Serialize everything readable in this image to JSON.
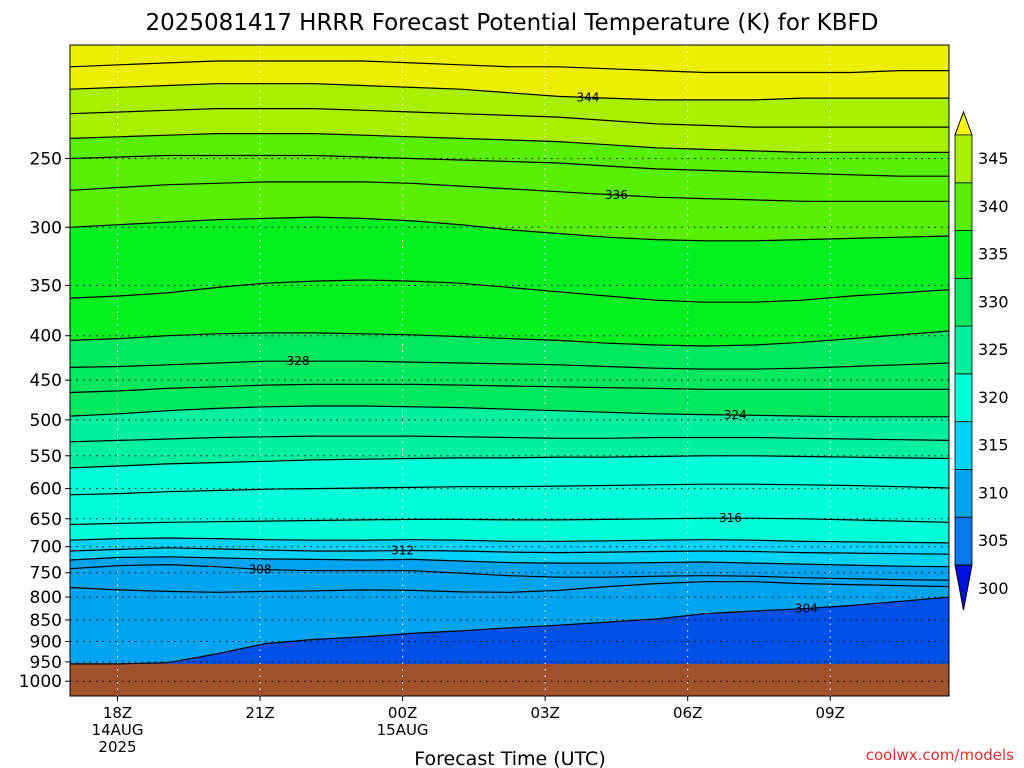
{
  "chart_data": {
    "type": "area",
    "title": "2025081417 HRRR Forecast Potential Temperature (K) for KBFD",
    "xlabel": "Forecast Time (UTC)",
    "ylabel": "",
    "credit": "coolwx.com/models",
    "x_hours": [
      0,
      3,
      6,
      9,
      12,
      15,
      18
    ],
    "x_ticks": [
      {
        "label": "18Z",
        "sub1": "14AUG",
        "sub2": "2025",
        "hour": 0
      },
      {
        "label": "21Z",
        "sub1": "",
        "sub2": "",
        "hour": 3
      },
      {
        "label": "00Z",
        "sub1": "15AUG",
        "sub2": "",
        "hour": 6
      },
      {
        "label": "03Z",
        "sub1": "",
        "sub2": "",
        "hour": 9
      },
      {
        "label": "06Z",
        "sub1": "",
        "sub2": "",
        "hour": 12
      },
      {
        "label": "09Z",
        "sub1": "",
        "sub2": "",
        "hour": 15
      }
    ],
    "xlim": [
      -1,
      17.5
    ],
    "y_ticks": [
      250,
      300,
      350,
      400,
      450,
      500,
      550,
      600,
      650,
      700,
      750,
      800,
      850,
      900,
      950,
      1000
    ],
    "ylim_hpa": [
      185,
      1040
    ],
    "surface_pressure_hpa": 955,
    "colorbar": {
      "ticks": [
        300,
        305,
        310,
        315,
        320,
        325,
        330,
        335,
        340,
        345
      ],
      "extend": "both",
      "colors": [
        "#0010e0",
        "#0050e8",
        "#0a78ea",
        "#00a4f0",
        "#00d2f8",
        "#00ffd8",
        "#00f0a0",
        "#00e860",
        "#00f020",
        "#58f000",
        "#a8f000",
        "#ecf000",
        "#f8f800"
      ],
      "bounds": [
        295,
        300,
        302.5,
        305,
        310,
        315,
        320,
        325,
        330,
        335,
        340,
        345,
        350
      ]
    },
    "ground_color": "#a0522d",
    "series": [
      {
        "level": 304,
        "label_hour": 14.5,
        "p": [
          955,
          955,
          952,
          930,
          905,
          895,
          889,
          881,
          875,
          868,
          862,
          855,
          848,
          836,
          830,
          825,
          818,
          809,
          800
        ]
      },
      {
        "level": 306,
        "label_hour": null,
        "p": [
          780,
          785,
          788,
          790,
          788,
          787,
          785,
          786,
          789,
          790,
          786,
          778,
          772,
          768,
          768,
          772,
          774,
          776,
          778
        ]
      },
      {
        "level": 308,
        "label_hour": 3.0,
        "p": [
          742,
          736,
          734,
          738,
          744,
          746,
          746,
          746,
          751,
          756,
          759,
          759,
          757,
          756,
          757,
          760,
          762,
          764,
          765
        ]
      },
      {
        "level": 310,
        "label_hour": null,
        "p": [
          725,
          720,
          719,
          721,
          723,
          724,
          725,
          724,
          727,
          730,
          731,
          731,
          730,
          729,
          731,
          733,
          735,
          737,
          738
        ]
      },
      {
        "level": 312,
        "label_hour": 6.0,
        "p": [
          708,
          705,
          702,
          704,
          706,
          708,
          708,
          707,
          708,
          710,
          711,
          710,
          709,
          708,
          709,
          711,
          712,
          713,
          714
        ]
      },
      {
        "level": 314,
        "label_hour": null,
        "p": [
          688,
          685,
          684,
          685,
          687,
          688,
          688,
          687,
          688,
          690,
          690,
          689,
          688,
          687,
          688,
          690,
          691,
          692,
          693
        ]
      },
      {
        "level": 316,
        "label_hour": 12.9,
        "p": [
          660,
          658,
          656,
          655,
          654,
          653,
          652,
          651,
          651,
          652,
          652,
          651,
          650,
          649,
          649,
          650,
          652,
          654,
          656
        ]
      },
      {
        "level": 318,
        "label_hour": null,
        "p": [
          610,
          608,
          605,
          603,
          601,
          600,
          599,
          598,
          597,
          597,
          596,
          595,
          594,
          593,
          593,
          594,
          595,
          597,
          599
        ]
      },
      {
        "level": 320,
        "label_hour": null,
        "p": [
          568,
          565,
          562,
          560,
          558,
          556,
          555,
          554,
          553,
          553,
          552,
          552,
          551,
          550,
          550,
          551,
          552,
          553,
          554
        ]
      },
      {
        "level": 322,
        "label_hour": null,
        "p": [
          530,
          528,
          526,
          524,
          523,
          522,
          522,
          522,
          523,
          524,
          525,
          525,
          524,
          524,
          524,
          525,
          526,
          527,
          528
        ]
      },
      {
        "level": 324,
        "label_hour": 13.0,
        "p": [
          495,
          492,
          488,
          485,
          483,
          482,
          482,
          483,
          484,
          486,
          488,
          490,
          492,
          493,
          494,
          495,
          496,
          496,
          496
        ]
      },
      {
        "level": 326,
        "label_hour": null,
        "p": [
          465,
          463,
          460,
          458,
          456,
          455,
          455,
          455,
          456,
          457,
          458,
          459,
          460,
          461,
          461,
          461,
          461,
          461,
          461
        ]
      },
      {
        "level": 328,
        "label_hour": 3.8,
        "p": [
          435,
          434,
          432,
          430,
          428,
          428,
          428,
          429,
          430,
          431,
          432,
          434,
          436,
          437,
          437,
          436,
          434,
          432,
          430
        ]
      },
      {
        "level": 330,
        "label_hour": null,
        "p": [
          405,
          403,
          400,
          398,
          397,
          397,
          398,
          399,
          401,
          403,
          405,
          408,
          410,
          411,
          410,
          407,
          403,
          399,
          395
        ]
      },
      {
        "level": 332,
        "label_hour": null,
        "p": [
          362,
          360,
          357,
          352,
          348,
          346,
          345,
          346,
          348,
          352,
          356,
          360,
          364,
          366,
          366,
          364,
          360,
          357,
          354
        ]
      },
      {
        "level": 334,
        "label_hour": null,
        "p": [
          300,
          298,
          296,
          294,
          293,
          292,
          293,
          295,
          298,
          302,
          305,
          308,
          310,
          311,
          311,
          310,
          309,
          308,
          307
        ]
      },
      {
        "level": 336,
        "label_hour": 10.5,
        "p": [
          272,
          270,
          268,
          267,
          266,
          266,
          266,
          267,
          269,
          271,
          273,
          275,
          277,
          278,
          279,
          280,
          280,
          280,
          280
        ]
      },
      {
        "level": 338,
        "label_hour": null,
        "p": [
          250,
          249,
          248,
          248,
          248,
          248,
          249,
          250,
          251,
          252,
          253,
          255,
          257,
          258,
          259,
          260,
          261,
          262,
          262
        ]
      },
      {
        "level": 340,
        "label_hour": null,
        "p": [
          237,
          236,
          235,
          234,
          234,
          234,
          235,
          236,
          237,
          238,
          239,
          241,
          243,
          244,
          245,
          246,
          246,
          246,
          246
        ]
      },
      {
        "level": 342,
        "label_hour": null,
        "p": [
          222,
          221,
          220,
          219,
          219,
          219,
          220,
          221,
          222,
          223,
          224,
          226,
          228,
          229,
          230,
          230,
          230,
          230,
          230
        ]
      },
      {
        "level": 344,
        "label_hour": 9.9,
        "p": [
          208,
          207,
          206,
          205,
          205,
          205,
          206,
          207,
          208,
          210,
          212,
          213,
          214,
          214,
          214,
          213,
          213,
          213,
          213
        ]
      },
      {
        "level": 346,
        "label_hour": null,
        "p": [
          196,
          195,
          194,
          193,
          193,
          193,
          193,
          194,
          195,
          196,
          196,
          197,
          198,
          199,
          199,
          199,
          199,
          198,
          198
        ]
      }
    ]
  }
}
